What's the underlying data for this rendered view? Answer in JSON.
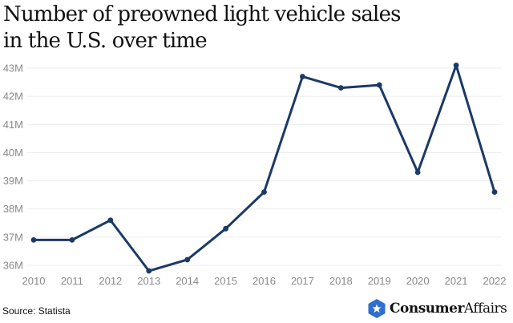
{
  "chart_data": {
    "type": "line",
    "title": "Number of preowned light vehicle sales in the U.S. over time",
    "title_lines": [
      "Number of preowned light vehicle sales",
      "in the U.S. over time"
    ],
    "xlabel": "",
    "ylabel": "",
    "x": [
      "2010",
      "2011",
      "2012",
      "2013",
      "2014",
      "2015",
      "2016",
      "2017",
      "2018",
      "2019",
      "2020",
      "2021",
      "2022"
    ],
    "series": [
      {
        "name": "Preowned light vehicle sales (millions)",
        "color": "#1b3a66",
        "values": [
          36.9,
          36.9,
          37.6,
          35.8,
          36.2,
          37.3,
          38.6,
          42.7,
          42.3,
          42.4,
          39.3,
          43.1,
          38.6
        ]
      }
    ],
    "ylim": [
      36,
      43
    ],
    "yticks": [
      36,
      37,
      38,
      39,
      40,
      41,
      42,
      43
    ],
    "ytick_labels": [
      "36M",
      "37M",
      "38M",
      "39M",
      "40M",
      "41M",
      "42M",
      "43M"
    ],
    "grid": true,
    "legend": "none"
  },
  "footer": {
    "source": "Source: Statista",
    "brand_bold": "Consumer",
    "brand_light": "Affairs",
    "brand_color": "#2f6fd0"
  }
}
